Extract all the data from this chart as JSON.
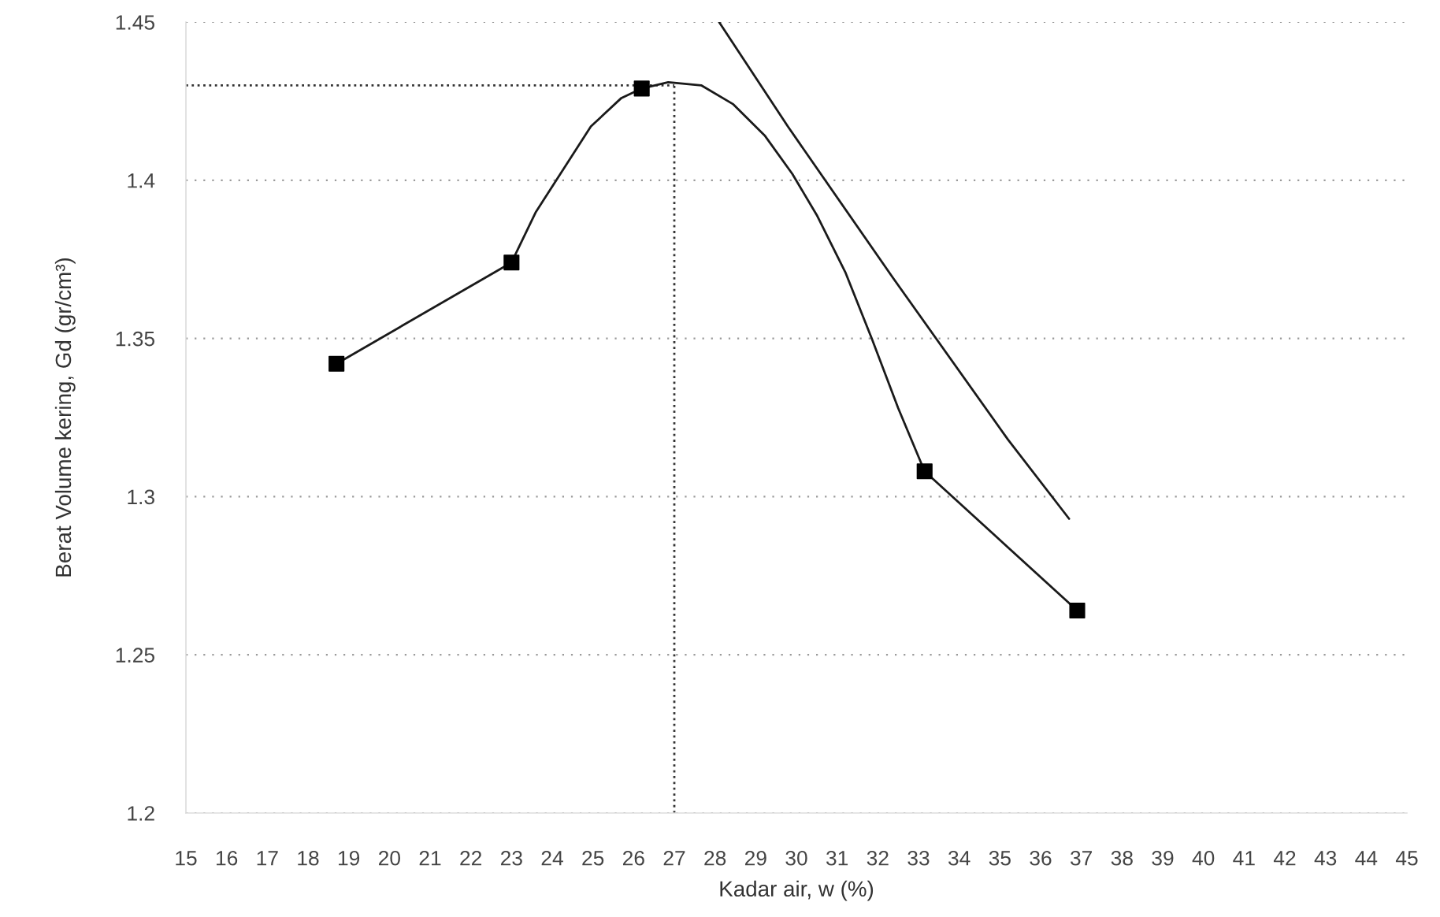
{
  "chart_data": {
    "type": "line",
    "xlabel": "Kadar air, w (%)",
    "ylabel": "Berat Volume kering, Gd (gr/cm³)",
    "series": [
      {
        "color": "#1a1a1a",
        "x": [
          18.7,
          23.0,
          23.6,
          24.2,
          24.95,
          25.7,
          26.2,
          26.85,
          27.66,
          28.45,
          29.23,
          29.9,
          30.5,
          31.2,
          31.85,
          32.5,
          33.15,
          36.9
        ],
        "values": [
          1.342,
          1.374,
          1.39,
          1.402,
          1.417,
          1.426,
          1.429,
          1.431,
          1.43,
          1.424,
          1.414,
          1.402,
          1.389,
          1.371,
          1.35,
          1.328,
          1.308,
          1.264
        ]
      },
      {
        "type": "scatter",
        "color": "#000000",
        "marker": "square",
        "x": [
          18.7,
          23.0,
          26.2,
          33.15,
          36.9
        ],
        "values": [
          1.342,
          1.374,
          1.429,
          1.308,
          1.264
        ]
      },
      {
        "color": "#1a1a1a",
        "x": [
          28.1,
          29.79,
          32.38,
          35.2,
          36.7
        ],
        "values": [
          1.45,
          1.417,
          1.369,
          1.318,
          1.293
        ]
      }
    ],
    "xlim": [
      15,
      45
    ],
    "xticks": [
      15,
      16,
      17,
      18,
      19,
      20,
      21,
      22,
      23,
      24,
      25,
      26,
      27,
      28,
      29,
      30,
      31,
      32,
      33,
      34,
      35,
      36,
      37,
      38,
      39,
      40,
      41,
      42,
      43,
      44,
      45
    ],
    "ylim": [
      1.2,
      1.45
    ],
    "yticks": [
      1.2,
      1.25,
      1.3,
      1.35,
      1.4,
      1.45
    ],
    "ref_lines": [
      {
        "axis": "y",
        "value": 1.43,
        "color": "#333333",
        "line_style": "dotted"
      },
      {
        "axis": "x",
        "value": 27,
        "color": "#333333",
        "line_style": "dotted"
      }
    ],
    "grid": "y"
  }
}
